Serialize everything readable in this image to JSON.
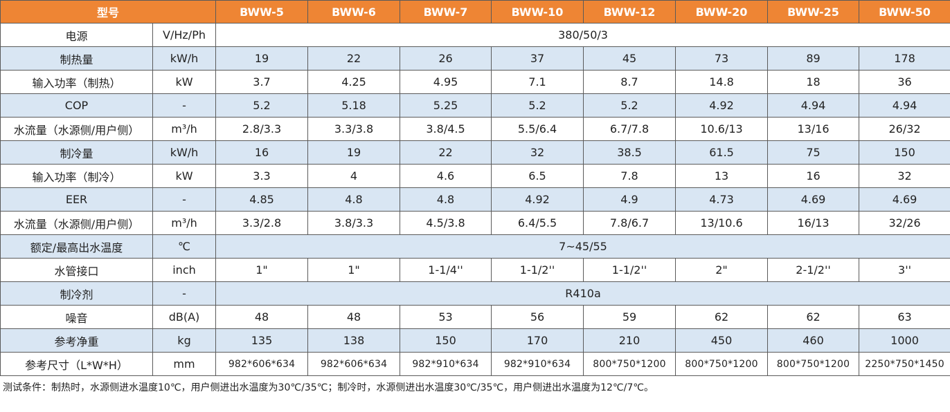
{
  "header": {
    "label": "型号",
    "models": [
      "BWW-5",
      "BWW-6",
      "BWW-7",
      "BWW-10",
      "BWW-12",
      "BWW-20",
      "BWW-25",
      "BWW-50"
    ]
  },
  "rows": [
    {
      "label": "电源",
      "unit": "V/Hz/Ph",
      "merged": "380/50/3"
    },
    {
      "label": "制热量",
      "unit": "kW/h",
      "values": [
        "19",
        "22",
        "26",
        "37",
        "45",
        "73",
        "89",
        "178"
      ]
    },
    {
      "label": "输入功率（制热）",
      "unit": "kW",
      "values": [
        "3.7",
        "4.25",
        "4.95",
        "7.1",
        "8.7",
        "14.8",
        "18",
        "36"
      ]
    },
    {
      "label": "COP",
      "unit": "-",
      "values": [
        "5.2",
        "5.18",
        "5.25",
        "5.2",
        "5.2",
        "4.92",
        "4.94",
        "4.94"
      ]
    },
    {
      "label": "水流量（水源侧/用户侧）",
      "unit": "m³/h",
      "values": [
        "2.8/3.3",
        "3.3/3.8",
        "3.8/4.5",
        "5.5/6.4",
        "6.7/7.8",
        "10.6/13",
        "13/16",
        "26/32"
      ]
    },
    {
      "label": "制冷量",
      "unit": "kW/h",
      "values": [
        "16",
        "19",
        "22",
        "32",
        "38.5",
        "61.5",
        "75",
        "150"
      ]
    },
    {
      "label": "输入功率（制冷）",
      "unit": "kW",
      "values": [
        "3.3",
        "4",
        "4.6",
        "6.5",
        "7.8",
        "13",
        "16",
        "32"
      ]
    },
    {
      "label": "EER",
      "unit": "-",
      "values": [
        "4.85",
        "4.8",
        "4.8",
        "4.92",
        "4.9",
        "4.73",
        "4.69",
        "4.69"
      ]
    },
    {
      "label": "水流量（水源侧/用户侧）",
      "unit": "m³/h",
      "values": [
        "3.3/2.8",
        "3.8/3.3",
        "4.5/3.8",
        "6.4/5.5",
        "7.8/6.7",
        "13/10.6",
        "16/13",
        "32/26"
      ]
    },
    {
      "label": "额定/最高出水温度",
      "unit": "℃",
      "merged": "7~45/55"
    },
    {
      "label": "水管接口",
      "unit": "inch",
      "values": [
        "1\"",
        "1\"",
        "1-1/4''",
        "1-1/2''",
        "1-1/2''",
        "2\"",
        "2-1/2''",
        "3''"
      ]
    },
    {
      "label": "制冷剂",
      "unit": "-",
      "merged": "R410a"
    },
    {
      "label": "噪音",
      "unit": "dB(A)",
      "values": [
        "48",
        "48",
        "53",
        "56",
        "59",
        "62",
        "62",
        "63"
      ]
    },
    {
      "label": "参考净重",
      "unit": "kg",
      "values": [
        "135",
        "138",
        "150",
        "170",
        "210",
        "450",
        "460",
        "1000"
      ]
    },
    {
      "label": "参考尺寸（L*W*H）",
      "unit": "mm",
      "values": [
        "982*606*634",
        "982*606*634",
        "982*910*634",
        "982*910*634",
        "800*750*1200",
        "800*750*1200",
        "800*750*1200",
        "2250*750*1450"
      ]
    }
  ],
  "footnote": "测试条件：制热时，水源侧进水温度10℃，用户侧进出水温度为30℃/35℃；制冷时，水源侧进出水温度30℃/35℃，用户侧进出水温度为12℃/7℃。"
}
